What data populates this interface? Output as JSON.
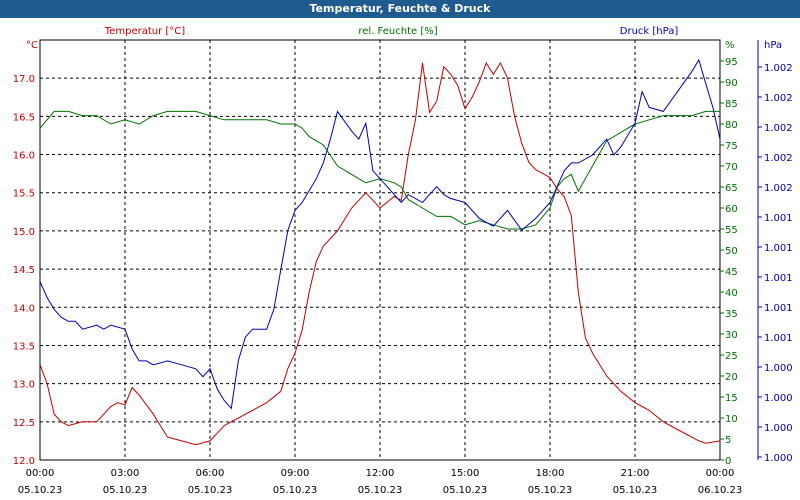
{
  "window": {
    "title": "Temperatur, Feuchte & Druck"
  },
  "colors": {
    "title_bar": "#1f5b8f",
    "temperature": "#c00000",
    "humidity": "#007000",
    "pressure": "#0000b0",
    "grid": "#000000",
    "axis_text": "#000000"
  },
  "chart_data": {
    "type": "line",
    "title": "Temperatur, Feuchte & Druck",
    "grid": true,
    "x_ticks": [
      {
        "time": "00:00",
        "date": "05.10.23"
      },
      {
        "time": "03:00",
        "date": "05.10.23"
      },
      {
        "time": "06:00",
        "date": "05.10.23"
      },
      {
        "time": "09:00",
        "date": "05.10.23"
      },
      {
        "time": "12:00",
        "date": "05.10.23"
      },
      {
        "time": "15:00",
        "date": "05.10.23"
      },
      {
        "time": "18:00",
        "date": "05.10.23"
      },
      {
        "time": "21:00",
        "date": "05.10.23"
      },
      {
        "time": "00:00",
        "date": "06.10.23"
      }
    ],
    "x_range_hours": [
      0,
      24
    ],
    "axes": {
      "left": {
        "label": "Temperatur [°C]",
        "unit": "°C",
        "min": 12.0,
        "max": 17.5,
        "ticks": [
          "12.0",
          "12.5",
          "13.0",
          "13.5",
          "14.0",
          "14.5",
          "15.0",
          "15.5",
          "16.0",
          "16.5",
          "17.0"
        ],
        "tick_values": [
          12.0,
          12.5,
          13.0,
          13.5,
          14.0,
          14.5,
          15.0,
          15.5,
          16.0,
          16.5,
          17.0
        ]
      },
      "right1": {
        "label": "rel. Feuchte [%]",
        "unit": "%",
        "min": 0,
        "max": 100,
        "ticks": [
          "0",
          "5",
          "10",
          "15",
          "20",
          "25",
          "30",
          "35",
          "40",
          "45",
          "50",
          "55",
          "60",
          "65",
          "70",
          "75",
          "80",
          "85",
          "90",
          "95"
        ],
        "tick_values": [
          0,
          5,
          10,
          15,
          20,
          25,
          30,
          35,
          40,
          45,
          50,
          55,
          60,
          65,
          70,
          75,
          80,
          85,
          90,
          95
        ]
      },
      "right2": {
        "label": "Druck [hPa]",
        "unit": "hPa",
        "tick_labels": [
          "1.000",
          "1.000",
          "1.000",
          "1.000",
          "1.001",
          "1.001",
          "1.001",
          "1.001",
          "1.001",
          "1.002",
          "1.002",
          "1.002",
          "1.002",
          "1.002"
        ]
      }
    },
    "series": [
      {
        "name": "Temperatur [°C]",
        "axis": "left",
        "x": [
          0,
          0.25,
          0.5,
          0.75,
          1.0,
          1.5,
          2.0,
          2.5,
          2.75,
          3.0,
          3.25,
          3.5,
          4.0,
          4.5,
          5.0,
          5.5,
          6.0,
          6.25,
          6.5,
          7.0,
          7.5,
          8.0,
          8.5,
          8.75,
          9.0,
          9.25,
          9.5,
          9.75,
          10.0,
          10.5,
          11.0,
          11.5,
          12.0,
          12.5,
          12.75,
          13.0,
          13.25,
          13.5,
          13.75,
          14.0,
          14.25,
          14.5,
          14.75,
          15.0,
          15.25,
          15.5,
          15.75,
          16.0,
          16.25,
          16.5,
          16.75,
          17.0,
          17.25,
          17.5,
          17.75,
          18.0,
          18.25,
          18.5,
          18.75,
          19.0,
          19.25,
          19.5,
          20.0,
          20.5,
          21.0,
          21.25,
          21.5,
          22.0,
          22.5,
          23.0,
          23.25,
          23.5,
          24.0
        ],
        "values": [
          13.25,
          13.0,
          12.6,
          12.5,
          12.45,
          12.5,
          12.5,
          12.7,
          12.75,
          12.72,
          12.95,
          12.85,
          12.6,
          12.3,
          12.25,
          12.2,
          12.25,
          12.35,
          12.45,
          12.55,
          12.65,
          12.75,
          12.9,
          13.2,
          13.4,
          13.7,
          14.2,
          14.6,
          14.8,
          15.0,
          15.3,
          15.5,
          15.3,
          15.45,
          15.4,
          16.0,
          16.45,
          17.2,
          16.55,
          16.7,
          17.15,
          17.05,
          16.9,
          16.6,
          16.75,
          16.95,
          17.2,
          17.05,
          17.2,
          17.0,
          16.5,
          16.15,
          15.9,
          15.8,
          15.75,
          15.7,
          15.55,
          15.45,
          15.2,
          14.2,
          13.6,
          13.4,
          13.1,
          12.9,
          12.75,
          12.7,
          12.65,
          12.5,
          12.4,
          12.3,
          12.25,
          12.22,
          12.25
        ]
      },
      {
        "name": "rel. Feuchte [%]",
        "axis": "right1",
        "x": [
          0,
          0.25,
          0.5,
          1.0,
          1.5,
          2.0,
          2.5,
          3.0,
          3.5,
          4.0,
          4.5,
          5.0,
          5.5,
          6.0,
          6.5,
          7.0,
          7.5,
          8.0,
          8.5,
          9.0,
          9.25,
          9.5,
          10.0,
          10.5,
          11.0,
          11.5,
          12.0,
          12.5,
          12.75,
          13.0,
          13.5,
          14.0,
          14.5,
          15.0,
          15.5,
          16.0,
          16.5,
          17.0,
          17.5,
          18.0,
          18.25,
          18.5,
          18.75,
          19.0,
          19.5,
          20.0,
          20.5,
          21.0,
          21.5,
          22.0,
          22.5,
          23.0,
          23.5,
          24.0
        ],
        "values": [
          79,
          81,
          83,
          83,
          82,
          82,
          80,
          81,
          80,
          82,
          83,
          83,
          83,
          82,
          81,
          81,
          81,
          81,
          80,
          80,
          79,
          77,
          75,
          70,
          68,
          66,
          67,
          66,
          65,
          62,
          60,
          58,
          58,
          56,
          57,
          56,
          55,
          55,
          56,
          60,
          65,
          67,
          68,
          64,
          70,
          76,
          78,
          80,
          81,
          82,
          82,
          82,
          83,
          83
        ]
      },
      {
        "name": "Druck [hPa]",
        "axis": "right2",
        "x": [
          0,
          0.25,
          0.5,
          0.75,
          1.0,
          1.25,
          1.5,
          2.0,
          2.25,
          2.5,
          3.0,
          3.25,
          3.5,
          3.75,
          4.0,
          4.5,
          5.0,
          5.5,
          5.75,
          6.0,
          6.25,
          6.5,
          6.75,
          7.0,
          7.25,
          7.5,
          8.0,
          8.25,
          8.5,
          8.75,
          9.0,
          9.25,
          9.5,
          9.75,
          10.0,
          10.25,
          10.5,
          11.0,
          11.25,
          11.5,
          11.75,
          12.0,
          12.25,
          12.5,
          12.75,
          13.0,
          13.5,
          14.0,
          14.25,
          14.5,
          15.0,
          15.5,
          16.0,
          16.5,
          17.0,
          17.5,
          18.0,
          18.25,
          18.5,
          18.75,
          19.0,
          19.5,
          20.0,
          20.25,
          20.5,
          21.0,
          21.25,
          21.5,
          22.0,
          22.5,
          23.0,
          23.25,
          23.5,
          23.75,
          24.0
        ],
        "values": [
          0.42,
          0.38,
          0.35,
          0.33,
          0.32,
          0.32,
          0.3,
          0.31,
          0.3,
          0.31,
          0.3,
          0.25,
          0.22,
          0.22,
          0.21,
          0.22,
          0.21,
          0.2,
          0.18,
          0.2,
          0.15,
          0.12,
          0.1,
          0.22,
          0.28,
          0.3,
          0.3,
          0.35,
          0.45,
          0.55,
          0.6,
          0.62,
          0.65,
          0.68,
          0.72,
          0.78,
          0.85,
          0.8,
          0.78,
          0.82,
          0.7,
          0.68,
          0.66,
          0.64,
          0.62,
          0.64,
          0.62,
          0.66,
          0.64,
          0.63,
          0.62,
          0.58,
          0.56,
          0.6,
          0.55,
          0.58,
          0.62,
          0.66,
          0.7,
          0.72,
          0.72,
          0.74,
          0.78,
          0.74,
          0.76,
          0.82,
          0.9,
          0.86,
          0.85,
          0.9,
          0.95,
          0.98,
          0.92,
          0.86,
          0.78
        ]
      }
    ]
  }
}
